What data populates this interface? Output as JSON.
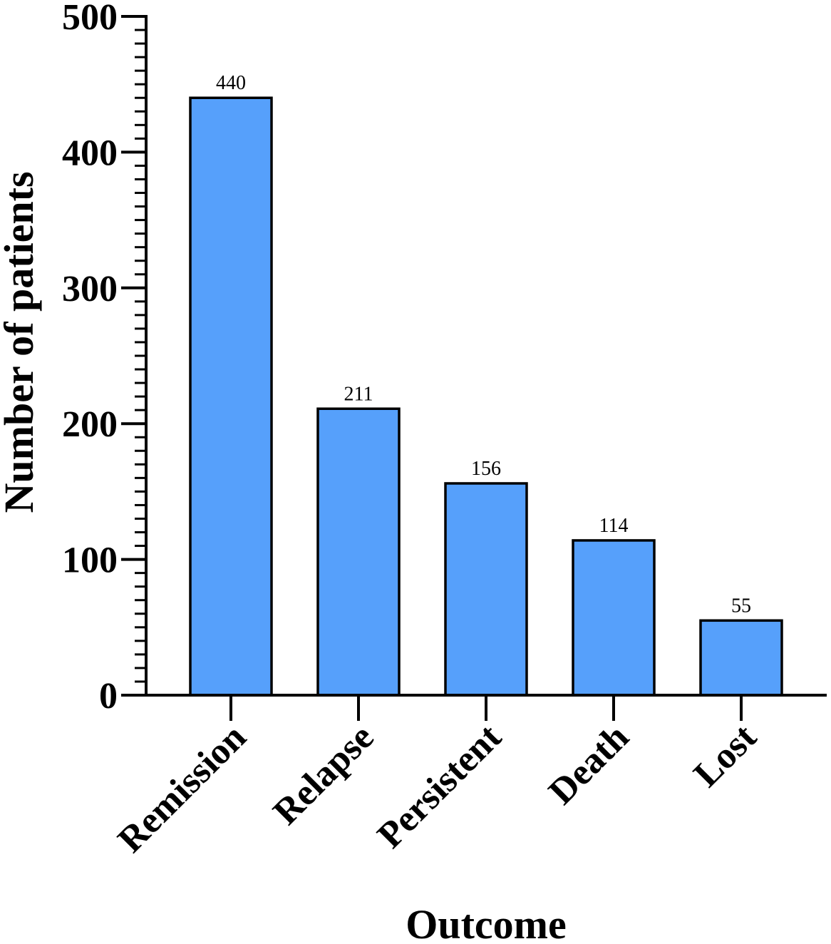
{
  "chart_data": {
    "type": "bar",
    "categories": [
      "Remission",
      "Relapse",
      "Persistent",
      "Death",
      "Lost"
    ],
    "values": [
      440,
      211,
      156,
      114,
      55
    ],
    "data_labels": [
      "440",
      "211",
      "156",
      "114",
      "55"
    ],
    "title": "",
    "xlabel": "Outcome",
    "ylabel": "Number of patients",
    "ylim": [
      0,
      500
    ],
    "yticks": [
      0,
      100,
      200,
      300,
      400,
      500
    ],
    "ytick_labels": [
      "0",
      "100",
      "200",
      "300",
      "400",
      "500"
    ],
    "minor_ticks_per_major": 10,
    "grid": false,
    "legend": "none",
    "bar_color": "#56a0fb",
    "edge_color": "#000000"
  }
}
